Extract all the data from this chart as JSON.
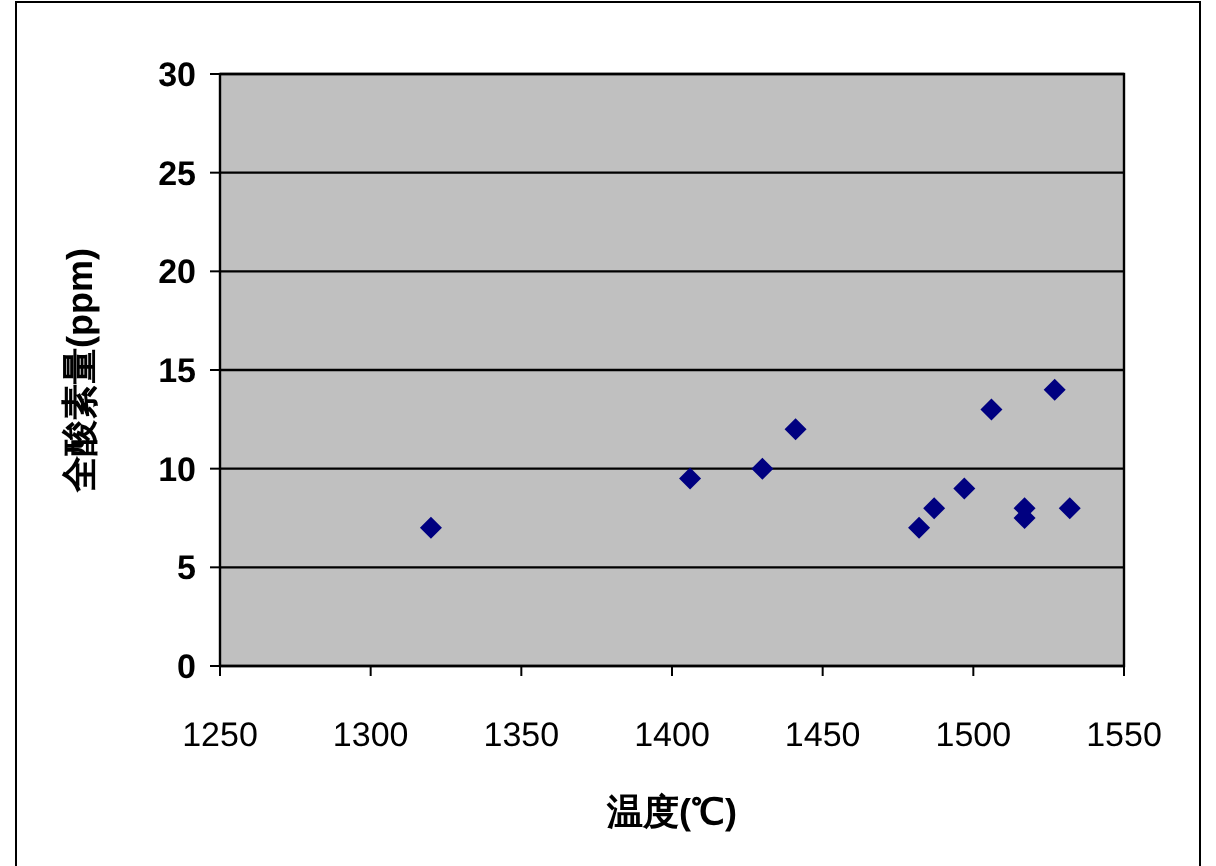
{
  "chart_data": {
    "type": "scatter",
    "xlabel": "温度(℃)",
    "ylabel": "全酸素量(ppm)",
    "x": [
      1320,
      1406,
      1430,
      1441,
      1482,
      1487,
      1497,
      1506,
      1517,
      1517,
      1527,
      1532
    ],
    "values": [
      7,
      9.5,
      10,
      12,
      7,
      8,
      9,
      13,
      8,
      7.5,
      14,
      8
    ],
    "color": "#000080",
    "marker": "diamond",
    "xlim": [
      1250,
      1550
    ],
    "xticks": [
      1250,
      1300,
      1350,
      1400,
      1450,
      1500,
      1550
    ],
    "ylim": [
      0,
      30
    ],
    "yticks": [
      0,
      5,
      10,
      15,
      20,
      25,
      30
    ],
    "grid": "y"
  }
}
